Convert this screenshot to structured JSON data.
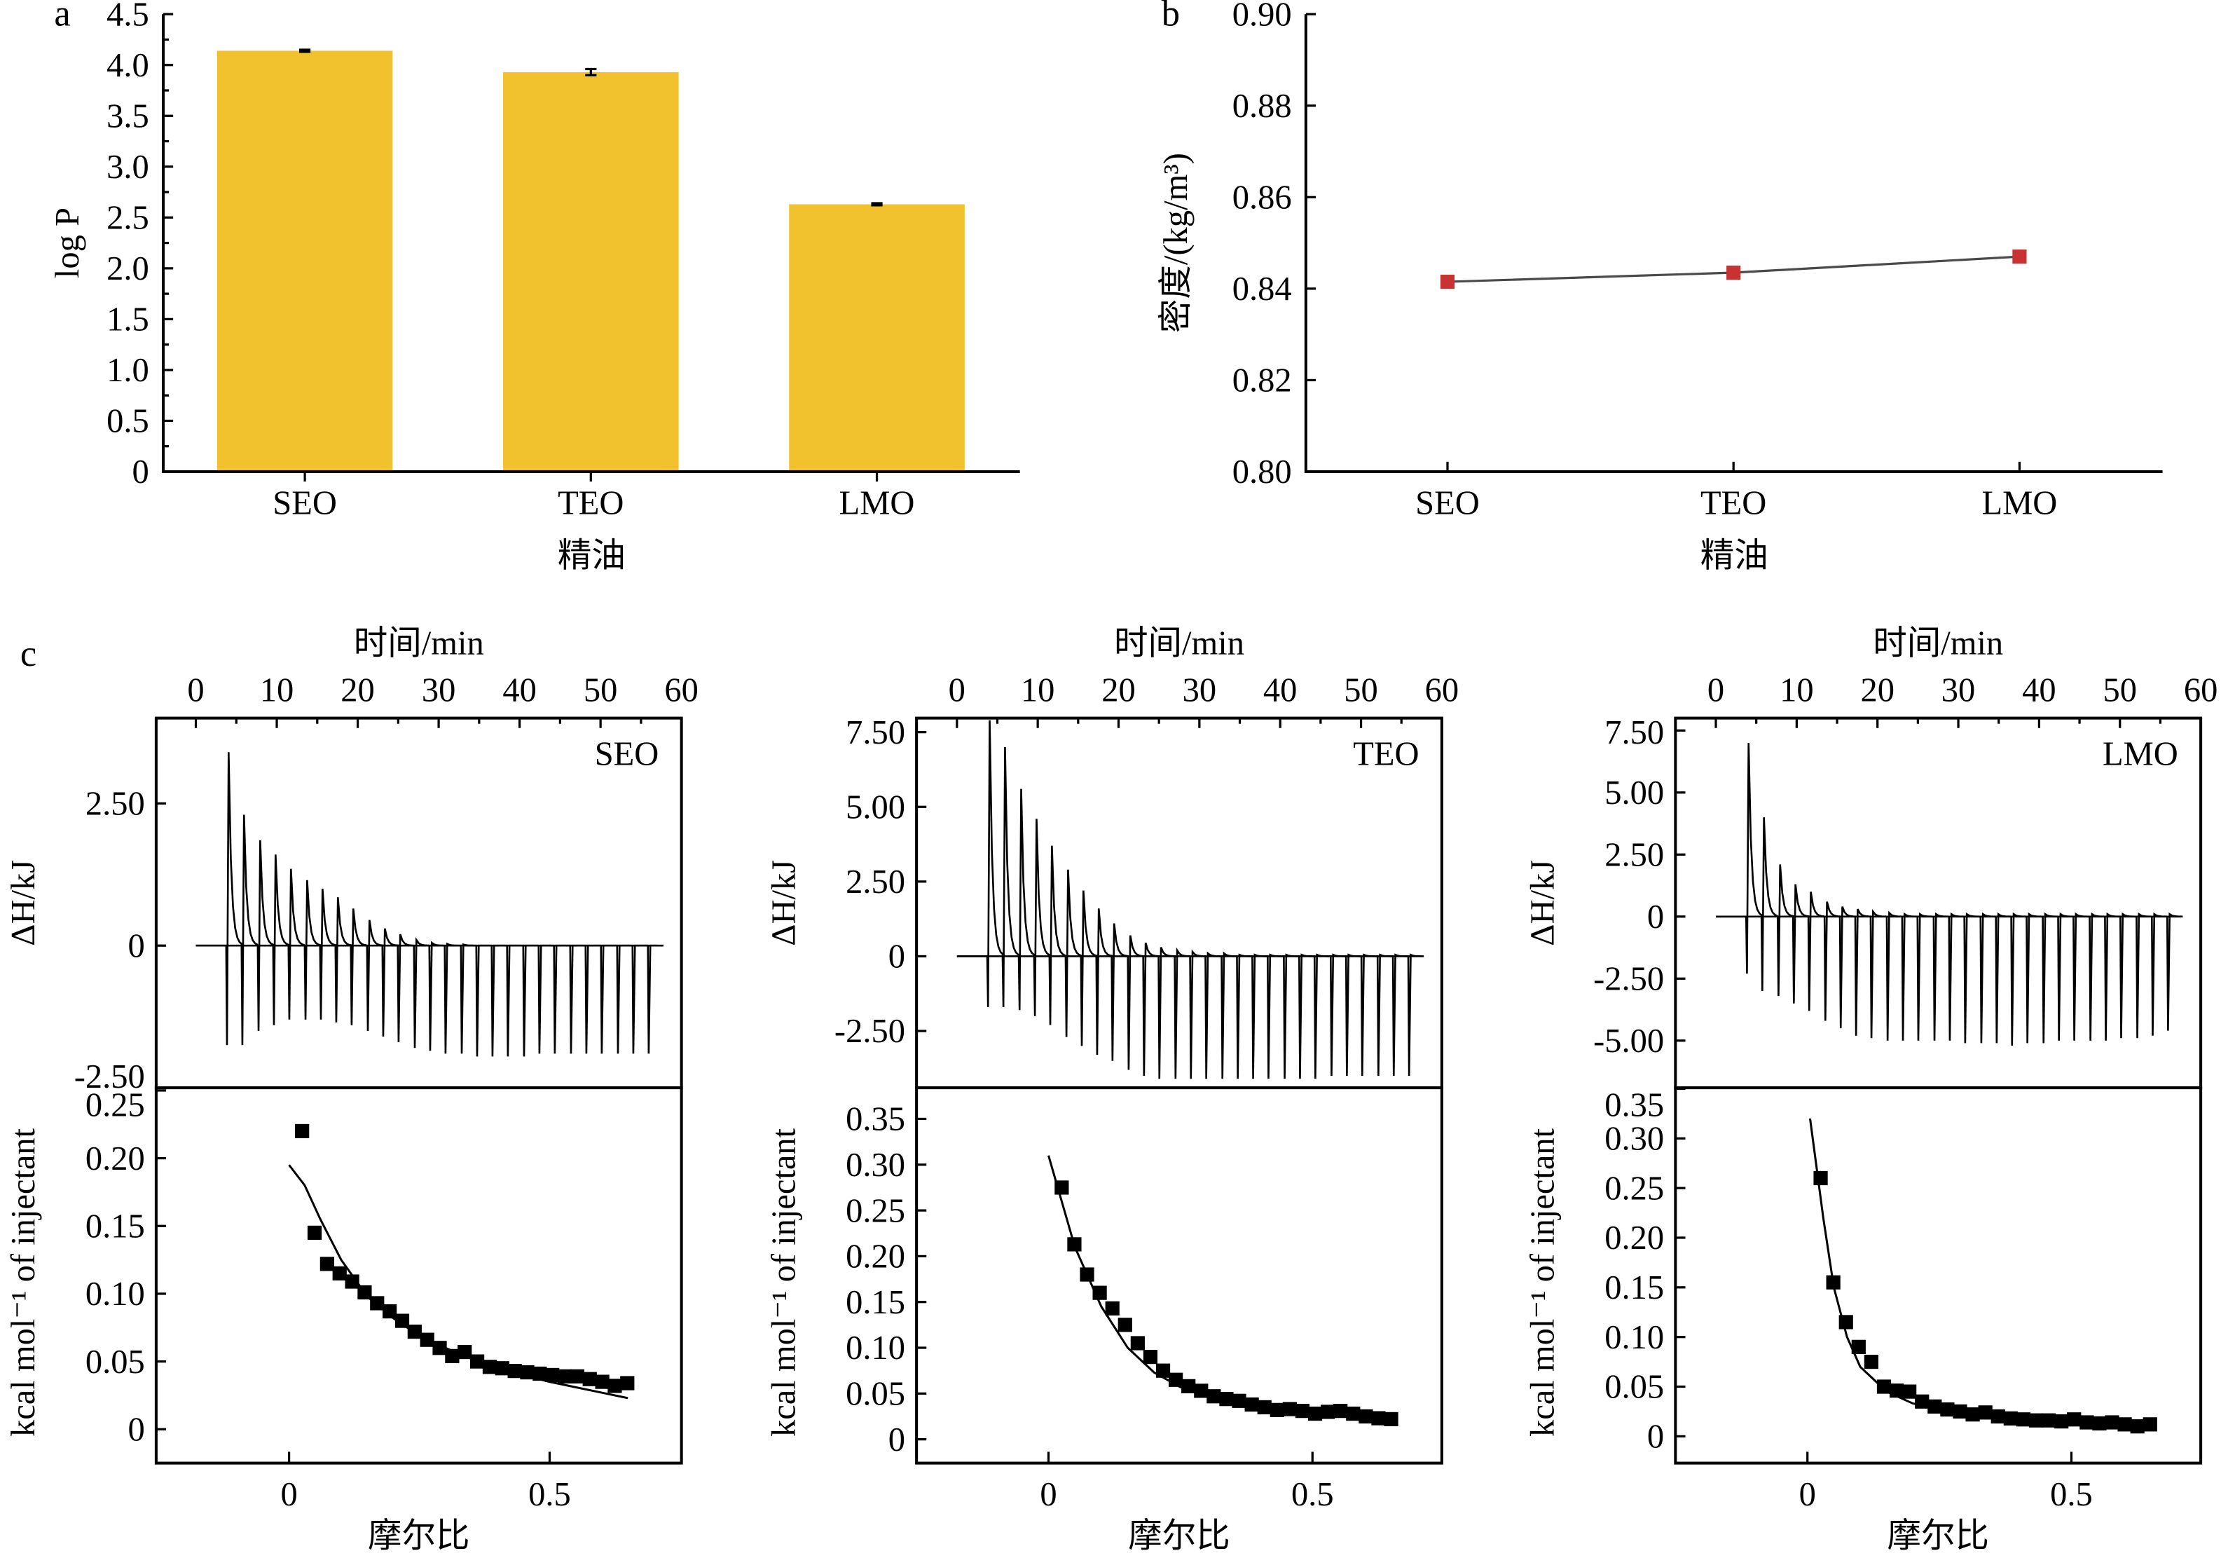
{
  "panel_labels": {
    "a": "a",
    "b": "b",
    "c": "c"
  },
  "chart_data": [
    {
      "type": "bar",
      "panel": "a",
      "categories": [
        "SEO",
        "TEO",
        "LMO"
      ],
      "values": [
        4.14,
        3.93,
        2.63
      ],
      "errors": [
        0.01,
        0.03,
        0.01
      ],
      "xlabel": "精油",
      "ylabel": "log P",
      "ylim": [
        0,
        4.5
      ],
      "yticks": [
        "0",
        "0.5",
        "1.0",
        "1.5",
        "2.0",
        "2.5",
        "3.0",
        "3.5",
        "4.0",
        "4.5"
      ],
      "bar_color": "#f2c12e"
    },
    {
      "type": "line",
      "panel": "b",
      "categories": [
        "SEO",
        "TEO",
        "LMO"
      ],
      "values": [
        0.8415,
        0.8435,
        0.847
      ],
      "xlabel": "精油",
      "ylabel": "密度/(kg/m³)",
      "ylim": [
        0.8,
        0.9
      ],
      "yticks": [
        "0.80",
        "0.82",
        "0.84",
        "0.86",
        "0.88",
        "0.90"
      ],
      "line_color": "#4a4a4a",
      "marker_color": "#c83232"
    },
    {
      "type": "line",
      "panel": "c",
      "label": "SEO",
      "top": {
        "xlabel": "时间/min",
        "ylabel": "ΔH/kJ",
        "xlim": [
          -4.9,
          60
        ],
        "ylim": [
          -2.5,
          4.0
        ],
        "xticks": [
          0,
          10,
          20,
          30,
          40,
          50,
          60
        ],
        "yticks": [
          "-2.50",
          "0",
          "2.50"
        ],
        "injection_times_min": [
          3.8,
          5.7,
          7.7,
          9.6,
          11.5,
          13.5,
          15.4,
          17.3,
          19.2,
          21.2,
          23.1,
          25.0,
          27.0,
          28.9,
          30.8,
          32.8,
          34.7,
          36.6,
          38.5,
          40.5,
          42.4,
          44.3,
          46.3,
          48.2,
          50.1,
          52.1,
          54.0,
          55.9
        ],
        "peak_max": [
          3.4,
          2.3,
          1.85,
          1.6,
          1.35,
          1.15,
          1.0,
          0.85,
          0.65,
          0.45,
          0.3,
          0.2,
          0.1,
          0.05,
          0.03,
          0.02,
          0,
          0,
          0,
          0,
          0,
          0,
          0,
          0,
          0,
          0,
          0,
          0
        ],
        "peak_min": [
          -1.75,
          -1.75,
          -1.5,
          -1.4,
          -1.3,
          -1.3,
          -1.3,
          -1.35,
          -1.4,
          -1.5,
          -1.6,
          -1.7,
          -1.8,
          -1.85,
          -1.9,
          -1.9,
          -1.95,
          -1.95,
          -1.95,
          -1.95,
          -1.9,
          -1.9,
          -1.9,
          -1.9,
          -1.9,
          -1.9,
          -1.9,
          -1.9
        ]
      },
      "bottom": {
        "xlabel": "摩尔比",
        "ylabel": "kcal mol⁻¹ of injectant",
        "xlim": [
          -0.255,
          0.753
        ],
        "ylim": [
          -0.025,
          0.252
        ],
        "xticks": [
          "0",
          "0.5"
        ],
        "yticks": [
          "0",
          "0.05",
          "0.10",
          "0.15",
          "0.20",
          "0.25"
        ],
        "points_x": [
          0.025,
          0.049,
          0.073,
          0.097,
          0.121,
          0.145,
          0.169,
          0.193,
          0.217,
          0.241,
          0.265,
          0.289,
          0.313,
          0.337,
          0.361,
          0.385,
          0.409,
          0.433,
          0.457,
          0.481,
          0.505,
          0.529,
          0.553,
          0.577,
          0.601,
          0.625,
          0.649
        ],
        "points_y": [
          0.22,
          0.145,
          0.122,
          0.115,
          0.109,
          0.101,
          0.093,
          0.087,
          0.08,
          0.072,
          0.066,
          0.06,
          0.054,
          0.057,
          0.05,
          0.046,
          0.045,
          0.043,
          0.042,
          0.041,
          0.04,
          0.039,
          0.039,
          0.037,
          0.035,
          0.032,
          0.034
        ],
        "fit_x": [
          0.0,
          0.03,
          0.06,
          0.1,
          0.15,
          0.2,
          0.25,
          0.3,
          0.35,
          0.4,
          0.45,
          0.5,
          0.55,
          0.6,
          0.65
        ],
        "fit_y": [
          0.195,
          0.18,
          0.155,
          0.125,
          0.098,
          0.082,
          0.069,
          0.06,
          0.052,
          0.046,
          0.04,
          0.035,
          0.031,
          0.027,
          0.023
        ]
      }
    },
    {
      "type": "line",
      "panel": "c",
      "label": "TEO",
      "top": {
        "xlabel": "时间/min",
        "ylabel": "ΔH/kJ",
        "xlim": [
          -5.0,
          60
        ],
        "ylim": [
          -4.4,
          7.97
        ],
        "xticks": [
          0,
          10,
          20,
          30,
          40,
          50,
          60
        ],
        "yticks": [
          "-2.50",
          "0",
          "2.50",
          "5.00",
          "7.50"
        ],
        "injection_times_min": [
          3.8,
          5.7,
          7.7,
          9.6,
          11.5,
          13.5,
          15.4,
          17.3,
          19.2,
          21.2,
          23.1,
          25.0,
          27.0,
          28.9,
          30.8,
          32.8,
          34.7,
          36.6,
          38.5,
          40.5,
          42.4,
          44.3,
          46.3,
          48.2,
          50.1,
          52.1,
          54.0,
          55.9
        ],
        "peak_max": [
          7.9,
          7.0,
          5.6,
          4.6,
          3.7,
          2.9,
          2.2,
          1.6,
          1.1,
          0.7,
          0.45,
          0.3,
          0.2,
          0.15,
          0.1,
          0.1,
          0.05,
          0.05,
          0.05,
          0.05,
          0.05,
          0.05,
          0.05,
          0.05,
          0.05,
          0.05,
          0.05,
          0.05
        ],
        "peak_min": [
          -1.7,
          -1.7,
          -1.8,
          -2.0,
          -2.3,
          -2.7,
          -3.0,
          -3.3,
          -3.5,
          -3.8,
          -4.0,
          -4.1,
          -4.1,
          -4.1,
          -4.1,
          -4.1,
          -4.1,
          -4.1,
          -4.1,
          -4.1,
          -4.1,
          -4.1,
          -4.0,
          -4.0,
          -4.0,
          -4.0,
          -4.0,
          -4.0
        ]
      },
      "bottom": {
        "xlabel": "摩尔比",
        "ylabel": "kcal mol⁻¹ of injectant",
        "xlim": [
          -0.25,
          0.745
        ],
        "ylim": [
          -0.026,
          0.384
        ],
        "xticks": [
          "0",
          "0.5"
        ],
        "yticks": [
          "0",
          "0.05",
          "0.10",
          "0.15",
          "0.20",
          "0.25",
          "0.30",
          "0.35"
        ],
        "points_x": [
          0.025,
          0.049,
          0.073,
          0.097,
          0.121,
          0.145,
          0.169,
          0.193,
          0.217,
          0.241,
          0.265,
          0.289,
          0.313,
          0.337,
          0.361,
          0.385,
          0.409,
          0.433,
          0.457,
          0.481,
          0.505,
          0.529,
          0.553,
          0.577,
          0.601,
          0.625,
          0.649
        ],
        "points_y": [
          0.275,
          0.213,
          0.18,
          0.16,
          0.143,
          0.125,
          0.105,
          0.09,
          0.075,
          0.065,
          0.058,
          0.053,
          0.047,
          0.044,
          0.042,
          0.038,
          0.035,
          0.032,
          0.033,
          0.031,
          0.028,
          0.03,
          0.031,
          0.028,
          0.025,
          0.023,
          0.022
        ],
        "fit_x": [
          0.0,
          0.05,
          0.1,
          0.15,
          0.2,
          0.25,
          0.3,
          0.4,
          0.5,
          0.65
        ],
        "fit_y": [
          0.31,
          0.21,
          0.145,
          0.1,
          0.073,
          0.057,
          0.047,
          0.036,
          0.03,
          0.022
        ]
      }
    },
    {
      "type": "line",
      "panel": "c",
      "label": "LMO",
      "top": {
        "xlabel": "时间/min",
        "ylabel": "ΔH/kJ",
        "xlim": [
          -5.0,
          60
        ],
        "ylim": [
          -6.9,
          8.0
        ],
        "xticks": [
          0,
          10,
          20,
          30,
          40,
          50,
          60
        ],
        "yticks": [
          "-5.00",
          "-2.50",
          "0",
          "2.50",
          "5.00",
          "7.50"
        ],
        "injection_times_min": [
          3.8,
          5.7,
          7.7,
          9.6,
          11.5,
          13.5,
          15.4,
          17.3,
          19.2,
          21.2,
          23.1,
          25.0,
          27.0,
          28.9,
          30.8,
          32.8,
          34.7,
          36.6,
          38.5,
          40.5,
          42.4,
          44.3,
          46.3,
          48.2,
          50.1,
          52.1,
          54.0,
          55.9
        ],
        "peak_max": [
          7.0,
          4.0,
          2.1,
          1.3,
          1.0,
          0.6,
          0.4,
          0.3,
          0.2,
          0.15,
          0.1,
          0.1,
          0.1,
          0.1,
          0.1,
          0.1,
          0.1,
          0.1,
          0.1,
          0.1,
          0.1,
          0.1,
          0.1,
          0.1,
          0.1,
          0.1,
          0.1,
          0.1
        ],
        "peak_min": [
          -2.3,
          -3.0,
          -3.2,
          -3.5,
          -3.8,
          -4.2,
          -4.5,
          -4.8,
          -4.9,
          -5.0,
          -5.0,
          -5.0,
          -5.0,
          -5.0,
          -5.1,
          -5.1,
          -5.1,
          -5.2,
          -5.1,
          -5.1,
          -5.0,
          -5.0,
          -5.0,
          -5.0,
          -4.9,
          -4.9,
          -4.8,
          -4.6
        ]
      },
      "bottom": {
        "xlabel": "摩尔比",
        "ylabel": "kcal mol⁻¹ of injectant",
        "xlim": [
          -0.25,
          0.745
        ],
        "ylim": [
          -0.027,
          0.351
        ],
        "xticks": [
          "0",
          "0.5"
        ],
        "yticks": [
          "0",
          "0.05",
          "0.10",
          "0.15",
          "0.20",
          "0.25",
          "0.30",
          "0.35"
        ],
        "points_x": [
          0.025,
          0.049,
          0.073,
          0.097,
          0.121,
          0.145,
          0.169,
          0.193,
          0.217,
          0.241,
          0.265,
          0.289,
          0.313,
          0.337,
          0.361,
          0.385,
          0.409,
          0.433,
          0.457,
          0.481,
          0.505,
          0.529,
          0.553,
          0.577,
          0.601,
          0.625,
          0.649
        ],
        "points_y": [
          0.26,
          0.155,
          0.115,
          0.09,
          0.075,
          0.05,
          0.046,
          0.045,
          0.035,
          0.03,
          0.027,
          0.025,
          0.022,
          0.024,
          0.02,
          0.018,
          0.017,
          0.016,
          0.016,
          0.015,
          0.017,
          0.014,
          0.013,
          0.014,
          0.012,
          0.01,
          0.012
        ],
        "fit_x": [
          0.005,
          0.03,
          0.05,
          0.075,
          0.1,
          0.15,
          0.2,
          0.3,
          0.4,
          0.5,
          0.65
        ],
        "fit_y": [
          0.32,
          0.22,
          0.15,
          0.1,
          0.07,
          0.045,
          0.033,
          0.024,
          0.018,
          0.014,
          0.011
        ]
      }
    }
  ]
}
